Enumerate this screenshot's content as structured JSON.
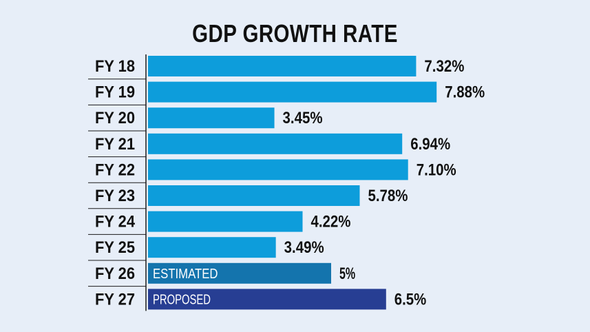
{
  "chart_data": {
    "type": "bar",
    "orientation": "horizontal",
    "title": "GDP GROWTH RATE",
    "categories": [
      "FY 18",
      "FY 19",
      "FY 20",
      "FY 21",
      "FY 22",
      "FY 23",
      "FY 24",
      "FY 25",
      "FY 26",
      "FY 27"
    ],
    "values": [
      7.32,
      7.88,
      3.45,
      6.94,
      7.1,
      5.78,
      4.22,
      3.49,
      5,
      6.5
    ],
    "value_labels": [
      "7.32%",
      "7.88%",
      "3.45%",
      "6.94%",
      "7.10%",
      "5.78%",
      "4.22%",
      "3.49%",
      "5%",
      "6.5%"
    ],
    "bar_inner_labels": [
      "",
      "",
      "",
      "",
      "",
      "",
      "",
      "",
      "ESTIMATED",
      "PROPOSED"
    ],
    "bar_colors": [
      "#0d9ddb",
      "#0d9ddb",
      "#0d9ddb",
      "#0d9ddb",
      "#0d9ddb",
      "#0d9ddb",
      "#0d9ddb",
      "#0d9ddb",
      "#1474ad",
      "#273e93"
    ],
    "xlabel": "",
    "ylabel": "",
    "grid": false,
    "legend": "none"
  }
}
